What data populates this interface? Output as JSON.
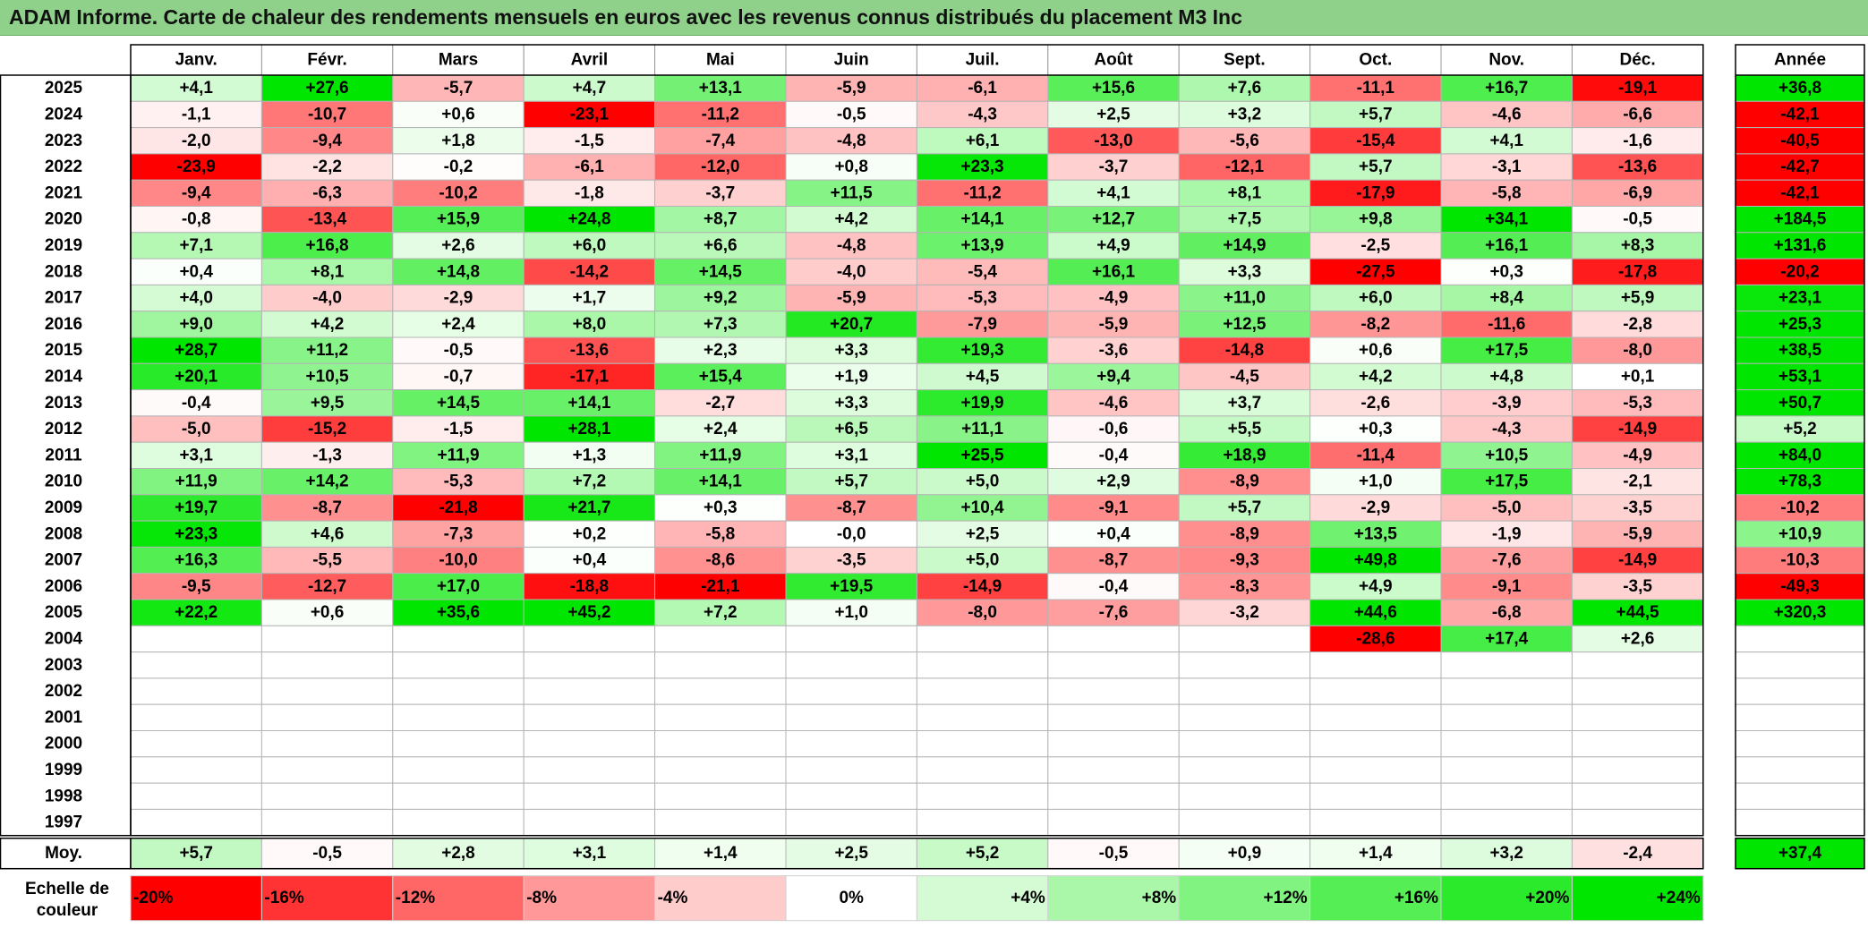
{
  "title": "ADAM Informe. Carte de chaleur des rendements mensuels en euros avec les revenus connus distribués du placement M3 Inc",
  "chart_data": {
    "type": "heatmap",
    "title": "ADAM Informe. Carte de chaleur des rendements mensuels en euros avec les revenus connus distribués du placement M3 Inc",
    "columns": [
      "Janv.",
      "Févr.",
      "Mars",
      "Avril",
      "Mai",
      "Juin",
      "Juil.",
      "Août",
      "Sept.",
      "Oct.",
      "Nov.",
      "Déc."
    ],
    "annual_header": "Année",
    "rows": [
      {
        "year": "2025",
        "values": [
          "+4,1",
          "+27,6",
          "-5,7",
          "+4,7",
          "+13,1",
          "-5,9",
          "-6,1",
          "+15,6",
          "+7,6",
          "-11,1",
          "+16,7",
          "-19,1"
        ],
        "annual": "+36,8"
      },
      {
        "year": "2024",
        "values": [
          "-1,1",
          "-10,7",
          "+0,6",
          "-23,1",
          "-11,2",
          "-0,5",
          "-4,3",
          "+2,5",
          "+3,2",
          "+5,7",
          "-4,6",
          "-6,6"
        ],
        "annual": "-42,1"
      },
      {
        "year": "2023",
        "values": [
          "-2,0",
          "-9,4",
          "+1,8",
          "-1,5",
          "-7,4",
          "-4,8",
          "+6,1",
          "-13,0",
          "-5,6",
          "-15,4",
          "+4,1",
          "-1,6"
        ],
        "annual": "-40,5"
      },
      {
        "year": "2022",
        "values": [
          "-23,9",
          "-2,2",
          "-0,2",
          "-6,1",
          "-12,0",
          "+0,8",
          "+23,3",
          "-3,7",
          "-12,1",
          "+5,7",
          "-3,1",
          "-13,6"
        ],
        "annual": "-42,7"
      },
      {
        "year": "2021",
        "values": [
          "-9,4",
          "-6,3",
          "-10,2",
          "-1,8",
          "-3,7",
          "+11,5",
          "-11,2",
          "+4,1",
          "+8,1",
          "-17,9",
          "-5,8",
          "-6,9"
        ],
        "annual": "-42,1"
      },
      {
        "year": "2020",
        "values": [
          "-0,8",
          "-13,4",
          "+15,9",
          "+24,8",
          "+8,7",
          "+4,2",
          "+14,1",
          "+12,7",
          "+7,5",
          "+9,8",
          "+34,1",
          "-0,5"
        ],
        "annual": "+184,5"
      },
      {
        "year": "2019",
        "values": [
          "+7,1",
          "+16,8",
          "+2,6",
          "+6,0",
          "+6,6",
          "-4,8",
          "+13,9",
          "+4,9",
          "+14,9",
          "-2,5",
          "+16,1",
          "+8,3"
        ],
        "annual": "+131,6"
      },
      {
        "year": "2018",
        "values": [
          "+0,4",
          "+8,1",
          "+14,8",
          "-14,2",
          "+14,5",
          "-4,0",
          "-5,4",
          "+16,1",
          "+3,3",
          "-27,5",
          "+0,3",
          "-17,8"
        ],
        "annual": "-20,2"
      },
      {
        "year": "2017",
        "values": [
          "+4,0",
          "-4,0",
          "-2,9",
          "+1,7",
          "+9,2",
          "-5,9",
          "-5,3",
          "-4,9",
          "+11,0",
          "+6,0",
          "+8,4",
          "+5,9"
        ],
        "annual": "+23,1"
      },
      {
        "year": "2016",
        "values": [
          "+9,0",
          "+4,2",
          "+2,4",
          "+8,0",
          "+7,3",
          "+20,7",
          "-7,9",
          "-5,9",
          "+12,5",
          "-8,2",
          "-11,6",
          "-2,8"
        ],
        "annual": "+25,3"
      },
      {
        "year": "2015",
        "values": [
          "+28,7",
          "+11,2",
          "-0,5",
          "-13,6",
          "+2,3",
          "+3,3",
          "+19,3",
          "-3,6",
          "-14,8",
          "+0,6",
          "+17,5",
          "-8,0"
        ],
        "annual": "+38,5"
      },
      {
        "year": "2014",
        "values": [
          "+20,1",
          "+10,5",
          "-0,7",
          "-17,1",
          "+15,4",
          "+1,9",
          "+4,5",
          "+9,4",
          "-4,5",
          "+4,2",
          "+4,8",
          "+0,1"
        ],
        "annual": "+53,1"
      },
      {
        "year": "2013",
        "values": [
          "-0,4",
          "+9,5",
          "+14,5",
          "+14,1",
          "-2,7",
          "+3,3",
          "+19,9",
          "-4,6",
          "+3,7",
          "-2,6",
          "-3,9",
          "-5,3"
        ],
        "annual": "+50,7"
      },
      {
        "year": "2012",
        "values": [
          "-5,0",
          "-15,2",
          "-1,5",
          "+28,1",
          "+2,4",
          "+6,5",
          "+11,1",
          "-0,6",
          "+5,5",
          "+0,3",
          "-4,3",
          "-14,9"
        ],
        "annual": "+5,2"
      },
      {
        "year": "2011",
        "values": [
          "+3,1",
          "-1,3",
          "+11,9",
          "+1,3",
          "+11,9",
          "+3,1",
          "+25,5",
          "-0,4",
          "+18,9",
          "-11,4",
          "+10,5",
          "-4,9"
        ],
        "annual": "+84,0"
      },
      {
        "year": "2010",
        "values": [
          "+11,9",
          "+14,2",
          "-5,3",
          "+7,2",
          "+14,1",
          "+5,7",
          "+5,0",
          "+2,9",
          "-8,9",
          "+1,0",
          "+17,5",
          "-2,1"
        ],
        "annual": "+78,3"
      },
      {
        "year": "2009",
        "values": [
          "+19,7",
          "-8,7",
          "-21,8",
          "+21,7",
          "+0,3",
          "-8,7",
          "+10,4",
          "-9,1",
          "+5,7",
          "-2,9",
          "-5,0",
          "-3,5"
        ],
        "annual": "-10,2"
      },
      {
        "year": "2008",
        "values": [
          "+23,3",
          "+4,6",
          "-7,3",
          "+0,2",
          "-5,8",
          "-0,0",
          "+2,5",
          "+0,4",
          "-8,9",
          "+13,5",
          "-1,9",
          "-5,9"
        ],
        "annual": "+10,9"
      },
      {
        "year": "2007",
        "values": [
          "+16,3",
          "-5,5",
          "-10,0",
          "+0,4",
          "-8,6",
          "-3,5",
          "+5,0",
          "-8,7",
          "-9,3",
          "+49,8",
          "-7,6",
          "-14,9"
        ],
        "annual": "-10,3"
      },
      {
        "year": "2006",
        "values": [
          "-9,5",
          "-12,7",
          "+17,0",
          "-18,8",
          "-21,1",
          "+19,5",
          "-14,9",
          "-0,4",
          "-8,3",
          "+4,9",
          "-9,1",
          "-3,5"
        ],
        "annual": "-49,3"
      },
      {
        "year": "2005",
        "values": [
          "+22,2",
          "+0,6",
          "+35,6",
          "+45,2",
          "+7,2",
          "+1,0",
          "-8,0",
          "-7,6",
          "-3,2",
          "+44,6",
          "-6,8",
          "+44,5"
        ],
        "annual": "+320,3"
      },
      {
        "year": "2004",
        "values": [
          "",
          "",
          "",
          "",
          "",
          "",
          "",
          "",
          "",
          "-28,6",
          "+17,4",
          "+2,6"
        ],
        "annual": ""
      },
      {
        "year": "2003",
        "values": [
          "",
          "",
          "",
          "",
          "",
          "",
          "",
          "",
          "",
          "",
          "",
          ""
        ],
        "annual": ""
      },
      {
        "year": "2002",
        "values": [
          "",
          "",
          "",
          "",
          "",
          "",
          "",
          "",
          "",
          "",
          "",
          ""
        ],
        "annual": ""
      },
      {
        "year": "2001",
        "values": [
          "",
          "",
          "",
          "",
          "",
          "",
          "",
          "",
          "",
          "",
          "",
          ""
        ],
        "annual": ""
      },
      {
        "year": "2000",
        "values": [
          "",
          "",
          "",
          "",
          "",
          "",
          "",
          "",
          "",
          "",
          "",
          ""
        ],
        "annual": ""
      },
      {
        "year": "1999",
        "values": [
          "",
          "",
          "",
          "",
          "",
          "",
          "",
          "",
          "",
          "",
          "",
          ""
        ],
        "annual": ""
      },
      {
        "year": "1998",
        "values": [
          "",
          "",
          "",
          "",
          "",
          "",
          "",
          "",
          "",
          "",
          "",
          ""
        ],
        "annual": ""
      },
      {
        "year": "1997",
        "values": [
          "",
          "",
          "",
          "",
          "",
          "",
          "",
          "",
          "",
          "",
          "",
          ""
        ],
        "annual": ""
      }
    ],
    "average": {
      "label": "Moy.",
      "values": [
        "+5,7",
        "-0,5",
        "+2,8",
        "+3,1",
        "+1,4",
        "+2,5",
        "+5,2",
        "-0,5",
        "+0,9",
        "+1,4",
        "+3,2",
        "-2,4"
      ],
      "annual": "+37,4"
    },
    "legend": {
      "label": "Echelle de couleur",
      "steps": [
        {
          "label": "-20%",
          "value": -20
        },
        {
          "label": "-16%",
          "value": -16
        },
        {
          "label": "-12%",
          "value": -12
        },
        {
          "label": "-8%",
          "value": -8
        },
        {
          "label": "-4%",
          "value": -4
        },
        {
          "label": "0%",
          "value": 0
        },
        {
          "label": "+4%",
          "value": 4
        },
        {
          "label": "+8%",
          "value": 8
        },
        {
          "label": "+12%",
          "value": 12
        },
        {
          "label": "+16%",
          "value": 16
        },
        {
          "label": "+20%",
          "value": 20
        },
        {
          "label": "+24%",
          "value": 24
        }
      ]
    },
    "colors": {
      "negative_max": "#ff0000",
      "neutral": "#ffffff",
      "positive_max": "#00e600"
    },
    "scale_limits": [
      -20,
      24
    ]
  }
}
